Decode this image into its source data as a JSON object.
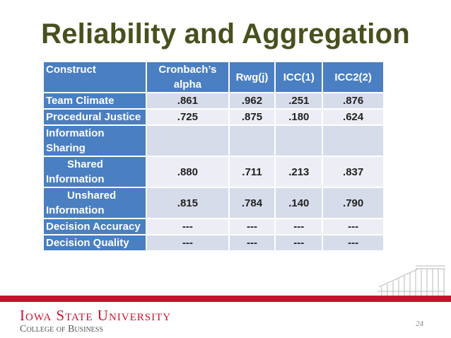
{
  "slide": {
    "title": "Reliability and Aggregation",
    "page_number": "24"
  },
  "table": {
    "headers": {
      "construct": "Construct",
      "alpha": "Cronbach’s alpha",
      "rwg": "Rwg(j)",
      "icc1": "ICC(1)",
      "icc2": "ICC2(2)"
    },
    "rows": [
      {
        "construct": "Team Climate",
        "alpha": ".861",
        "rwg": ".962",
        "icc1": ".251",
        "icc2": ".876"
      },
      {
        "construct": "Procedural Justice",
        "alpha": ".725",
        "rwg": ".875",
        "icc1": ".180",
        "icc2": ".624"
      },
      {
        "construct": "Information Sharing",
        "alpha": "",
        "rwg": "",
        "icc1": "",
        "icc2": ""
      },
      {
        "construct": "Shared Information",
        "alpha": ".880",
        "rwg": ".711",
        "icc1": ".213",
        "icc2": ".837"
      },
      {
        "construct": "Unshared Information",
        "alpha": ".815",
        "rwg": ".784",
        "icc1": ".140",
        "icc2": ".790"
      },
      {
        "construct": "Decision Accuracy",
        "alpha": "---",
        "rwg": "---",
        "icc1": "---",
        "icc2": "---"
      },
      {
        "construct": "Decision Quality",
        "alpha": "---",
        "rwg": "---",
        "icc1": "---",
        "icc2": "---"
      }
    ]
  },
  "footer": {
    "university": "Iowa State University",
    "college": "College of Business"
  },
  "colors": {
    "title": "#4a4f1f",
    "header_fill": "#4a7fc1",
    "band_fill": "#d7dcea",
    "plain_fill": "#edeef5",
    "brand_red": "#c8102e"
  }
}
